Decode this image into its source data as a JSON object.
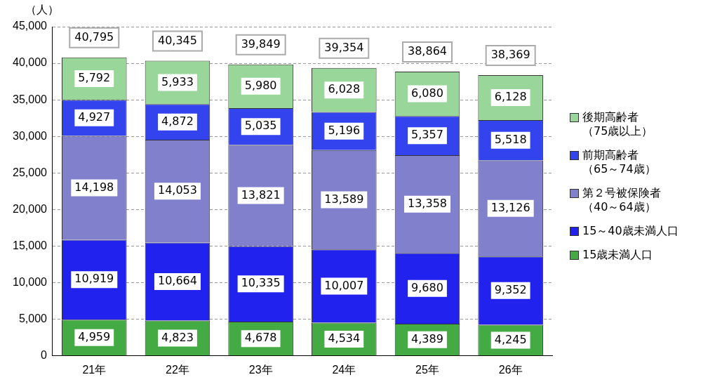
{
  "chart_data": {
    "type": "bar",
    "stacked": true,
    "ylabel": "（人）",
    "categories": [
      "21年",
      "22年",
      "23年",
      "24年",
      "25年",
      "26年"
    ],
    "ylim": [
      0,
      45000
    ],
    "yticks": [
      0,
      {
        "value": 5000,
        "label": "5,000"
      },
      {
        "value": 10000,
        "label": "10,000"
      },
      {
        "value": 15000,
        "label": "15,000"
      },
      {
        "value": 20000,
        "label": "20,000"
      },
      {
        "value": 25000,
        "label": "25,000"
      },
      {
        "value": 30000,
        "label": "30,000"
      },
      {
        "value": 35000,
        "label": "35,000"
      },
      {
        "value": 40000,
        "label": "40,000"
      },
      {
        "value": 45000,
        "label": "45,000"
      }
    ],
    "grid": "y",
    "legend": "right",
    "series": [
      {
        "name": "15歳未満人口",
        "color": "#44aa44",
        "values": [
          4959,
          4823,
          4678,
          4534,
          4389,
          4245
        ],
        "value_labels": [
          "4,959",
          "4,823",
          "4,678",
          "4,534",
          "4,389",
          "4,245"
        ]
      },
      {
        "name": "15～40歳未満人口",
        "color": "#2222ee",
        "values": [
          10919,
          10664,
          10335,
          10007,
          9680,
          9352
        ],
        "value_labels": [
          "10,919",
          "10,664",
          "10,335",
          "10,007",
          "9,680",
          "9,352"
        ]
      },
      {
        "name": "第２号被保険者（40～64歳）",
        "color": "#8080cc",
        "values": [
          14198,
          14053,
          13821,
          13589,
          13358,
          13126
        ],
        "value_labels": [
          "14,198",
          "14,053",
          "13,821",
          "13,589",
          "13,358",
          "13,126"
        ]
      },
      {
        "name": "前期高齢者（65～74歳）",
        "color": "#3344ee",
        "values": [
          4927,
          4872,
          5035,
          5196,
          5357,
          5518
        ],
        "value_labels": [
          "4,927",
          "4,872",
          "5,035",
          "5,196",
          "5,357",
          "5,518"
        ]
      },
      {
        "name": "後期高齢者（75歳以上）",
        "color": "#99d699",
        "values": [
          5792,
          5933,
          5980,
          6028,
          6080,
          6128
        ],
        "value_labels": [
          "5,792",
          "5,933",
          "5,980",
          "6,028",
          "6,080",
          "6,128"
        ]
      }
    ],
    "totals": [
      "40,795",
      "40,345",
      "39,849",
      "39,354",
      "38,864",
      "38,369"
    ]
  }
}
